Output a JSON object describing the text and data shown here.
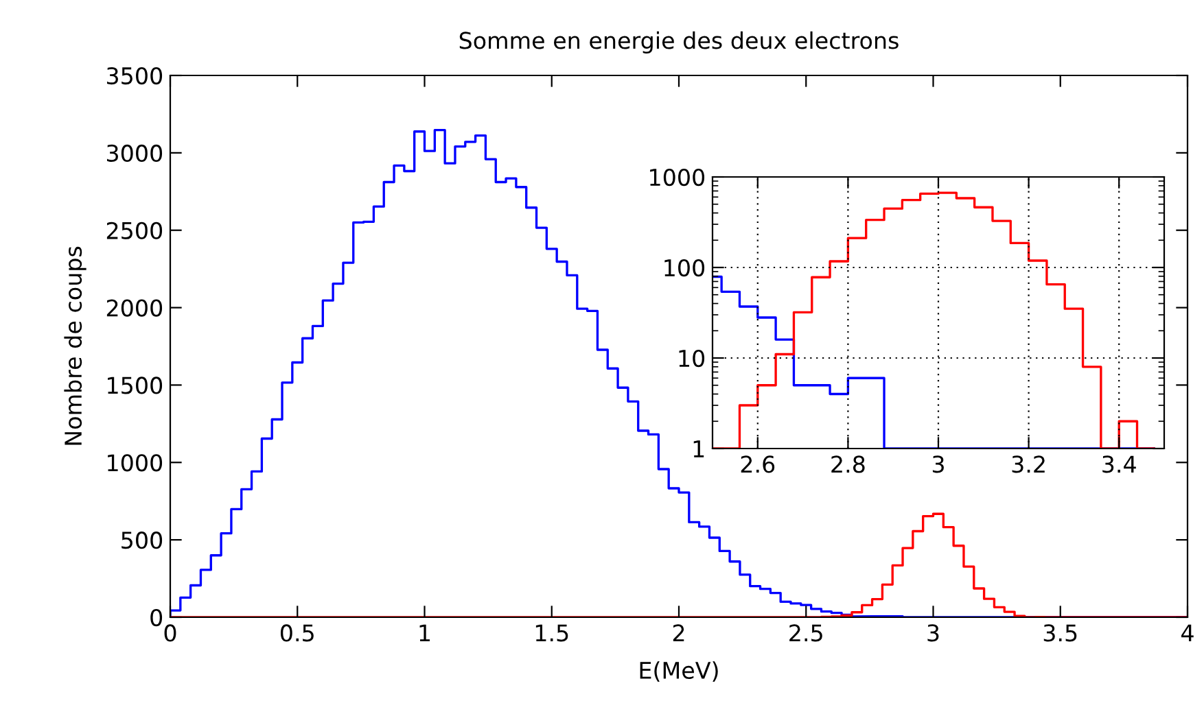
{
  "chart_data": [
    {
      "type": "histogram",
      "title": "Somme en energie des deux electrons",
      "xlabel": "E(MeV)",
      "ylabel": "Nombre de coups",
      "bins": [
        0,
        0.04,
        0.08,
        0.12,
        0.16,
        0.2,
        0.24,
        0.28,
        0.32,
        0.36,
        0.4,
        0.44,
        0.48,
        0.52,
        0.56,
        0.6,
        0.64,
        0.68,
        0.72,
        0.76,
        0.8,
        0.84,
        0.88,
        0.92,
        0.96,
        1,
        1.04,
        1.08,
        1.12,
        1.16,
        1.2,
        1.24,
        1.28,
        1.32,
        1.36,
        1.4,
        1.44,
        1.48,
        1.52,
        1.56,
        1.6,
        1.64,
        1.68,
        1.72,
        1.76,
        1.8,
        1.84,
        1.88,
        1.92,
        1.96,
        2,
        2.04,
        2.08,
        2.12,
        2.16,
        2.2,
        2.24,
        2.28,
        2.32,
        2.36,
        2.4,
        2.44,
        2.48,
        2.52,
        2.56,
        2.6,
        2.64,
        2.68,
        2.72,
        2.76,
        2.8,
        2.84,
        2.88,
        2.92,
        2.96,
        3,
        3.04,
        3.08,
        3.12,
        3.16,
        3.2,
        3.24,
        3.28,
        3.32,
        3.36,
        3.4,
        3.44,
        3.48,
        3.52,
        3.56,
        3.6,
        3.64,
        3.68,
        3.72,
        3.76,
        3.8,
        3.84,
        3.88,
        3.92,
        3.96,
        4
      ],
      "series": [
        {
          "color": "#0000ff",
          "values": [
            44,
            127,
            206,
            306,
            400,
            542,
            698,
            827,
            942,
            1154,
            1278,
            1516,
            1646,
            1802,
            1881,
            2046,
            2155,
            2290,
            2550,
            2555,
            2653,
            2811,
            2918,
            2882,
            3138,
            3012,
            3147,
            2932,
            3041,
            3071,
            3112,
            2959,
            2811,
            2835,
            2779,
            2646,
            2516,
            2380,
            2297,
            2209,
            1993,
            1979,
            1728,
            1607,
            1483,
            1394,
            1205,
            1181,
            957,
            833,
            806,
            614,
            585,
            514,
            428,
            360,
            275,
            201,
            183,
            157,
            100,
            89,
            79,
            54,
            37,
            28,
            16,
            5,
            5,
            4,
            6,
            6,
            0,
            0,
            0,
            0,
            0,
            0,
            0,
            0,
            0,
            0,
            0,
            0,
            0,
            0,
            0,
            0,
            0,
            0,
            0,
            0,
            0,
            0,
            0,
            0,
            0,
            0,
            0,
            0
          ]
        },
        {
          "color": "#ff0000",
          "values": [
            0,
            0,
            0,
            0,
            0,
            0,
            0,
            0,
            0,
            0,
            0,
            0,
            0,
            0,
            0,
            0,
            0,
            0,
            0,
            0,
            0,
            0,
            0,
            0,
            0,
            0,
            0,
            0,
            0,
            0,
            0,
            0,
            0,
            0,
            0,
            0,
            0,
            0,
            0,
            0,
            0,
            0,
            0,
            0,
            0,
            0,
            0,
            0,
            0,
            0,
            0,
            0,
            0,
            0,
            0,
            0,
            0,
            0,
            0,
            0,
            0,
            0,
            0,
            0,
            3,
            5,
            11,
            32,
            78,
            117,
            211,
            335,
            447,
            556,
            653,
            668,
            582,
            462,
            327,
            186,
            119,
            65,
            35,
            8,
            0,
            2,
            0,
            0,
            0,
            0,
            0,
            0,
            0,
            0,
            0,
            0,
            0,
            0,
            0,
            0
          ]
        }
      ],
      "xlim": [
        0,
        4
      ],
      "xticks": [
        0,
        0.5,
        1,
        1.5,
        2,
        2.5,
        3,
        3.5,
        4
      ],
      "ylim": [
        0,
        3500
      ],
      "yticks": [
        0,
        500,
        1000,
        1500,
        2000,
        2500,
        3000,
        3500
      ],
      "grid": false
    },
    {
      "type": "histogram",
      "log": "y",
      "grid": true,
      "bins": [
        2.48,
        2.52,
        2.56,
        2.6,
        2.64,
        2.68,
        2.72,
        2.76,
        2.8,
        2.84,
        2.88,
        2.92,
        2.96,
        3,
        3.04,
        3.08,
        3.12,
        3.16,
        3.2,
        3.24,
        3.28,
        3.32,
        3.36,
        3.4,
        3.44,
        3.48
      ],
      "series": [
        {
          "color": "#0000ff",
          "values": [
            79,
            54,
            37,
            28,
            16,
            5,
            5,
            4,
            6,
            6,
            null,
            null,
            null,
            null,
            null,
            null,
            null,
            null,
            null,
            null,
            null,
            null,
            null,
            null,
            null
          ]
        },
        {
          "color": "#ff0000",
          "values": [
            null,
            null,
            3,
            5,
            11,
            32,
            78,
            117,
            211,
            335,
            447,
            556,
            653,
            668,
            582,
            462,
            327,
            186,
            119,
            65,
            35,
            8,
            null,
            2,
            null
          ]
        }
      ],
      "xlim": [
        2.5,
        3.5
      ],
      "xticks": [
        2.6,
        2.8,
        3,
        3.2,
        3.4
      ],
      "ylim": [
        1,
        1000
      ],
      "yticks": [
        1,
        10,
        100,
        1000
      ]
    }
  ]
}
